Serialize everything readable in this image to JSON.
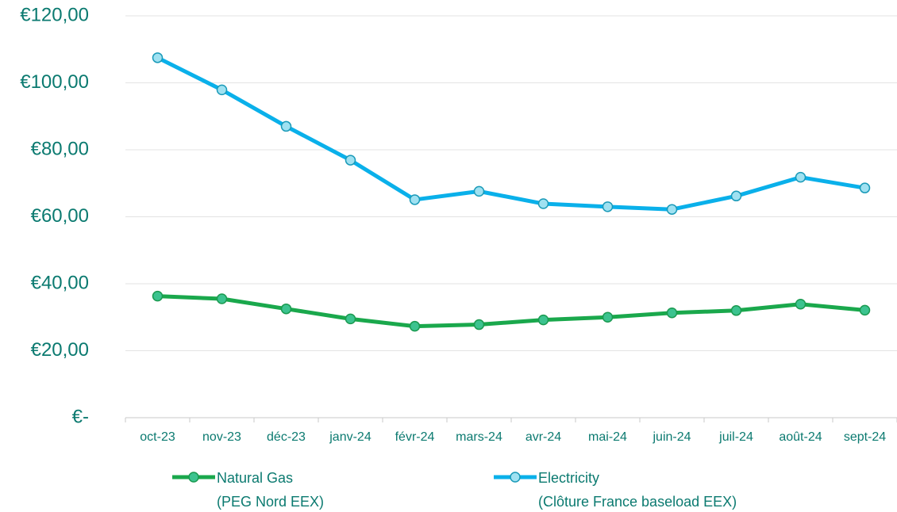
{
  "chart_data": {
    "type": "line",
    "categories": [
      "oct-23",
      "nov-23",
      "déc-23",
      "janv-24",
      "févr-24",
      "mars-24",
      "avr-24",
      "mai-24",
      "juin-24",
      "juil-24",
      "août-24",
      "sept-24"
    ],
    "series": [
      {
        "name": "Natural Gas\n(PEG Nord EEX)",
        "color": "#1aa84c",
        "marker_color": "#3cc38f",
        "values": [
          36.3,
          35.5,
          32.5,
          29.5,
          27.3,
          27.8,
          29.2,
          30.0,
          31.3,
          32.0,
          33.9,
          32.1
        ]
      },
      {
        "name": "Electricity\n(Clôture France baseload EEX)",
        "color": "#0ab0ea",
        "marker_color": "#9fe1f1",
        "values": [
          107.5,
          97.9,
          87.0,
          76.9,
          65.1,
          67.6,
          63.9,
          63.0,
          62.2,
          66.2,
          71.8,
          68.6
        ]
      }
    ],
    "ylim": [
      0,
      120
    ],
    "yticks": [
      {
        "value": 0,
        "label": "€-"
      },
      {
        "value": 20,
        "label": "€20,00"
      },
      {
        "value": 40,
        "label": "€40,00"
      },
      {
        "value": 60,
        "label": "€60,00"
      },
      {
        "value": 80,
        "label": "€80,00"
      },
      {
        "value": 100,
        "label": "€100,00"
      },
      {
        "value": 120,
        "label": "€120,00"
      }
    ],
    "grid": true
  }
}
